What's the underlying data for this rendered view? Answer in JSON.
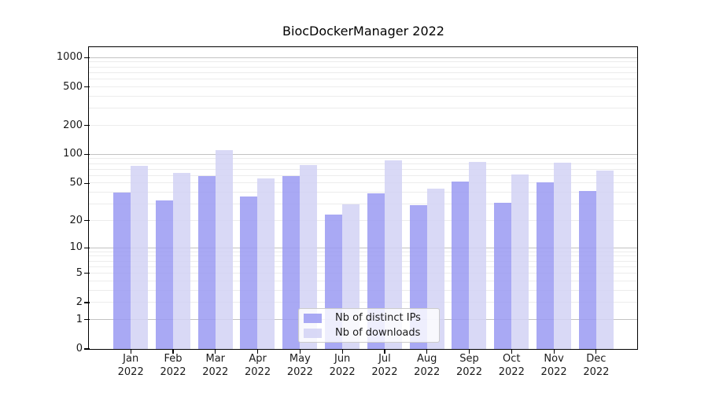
{
  "chart_data": {
    "type": "bar",
    "title": "BiocDockerManager 2022",
    "x_categories": [
      "Jan",
      "Feb",
      "Mar",
      "Apr",
      "May",
      "Jun",
      "Jul",
      "Aug",
      "Sep",
      "Oct",
      "Nov",
      "Dec"
    ],
    "x_year_label": "2022",
    "y_ticks": [
      1000,
      500,
      200,
      100,
      50,
      20,
      10,
      5,
      2,
      1,
      0
    ],
    "y_scale": "log1p",
    "ylim": [
      0,
      1285
    ],
    "grid": true,
    "legend_position": "lower center",
    "series": [
      {
        "name": "Nb of distinct IPs",
        "color": "#9a9af2",
        "values": [
          40,
          33,
          59,
          36,
          59,
          23,
          39,
          29,
          52,
          31,
          51,
          41
        ]
      },
      {
        "name": "Nb of downloads",
        "color": "#d2d2f5",
        "values": [
          76,
          64,
          110,
          56,
          77,
          30,
          87,
          44,
          84,
          61,
          82,
          67
        ]
      }
    ],
    "colors": {
      "grid_major": "#c2c2c2",
      "grid_minor": "#ececec",
      "axis": "#000000",
      "text": "#1a1a1a"
    }
  }
}
